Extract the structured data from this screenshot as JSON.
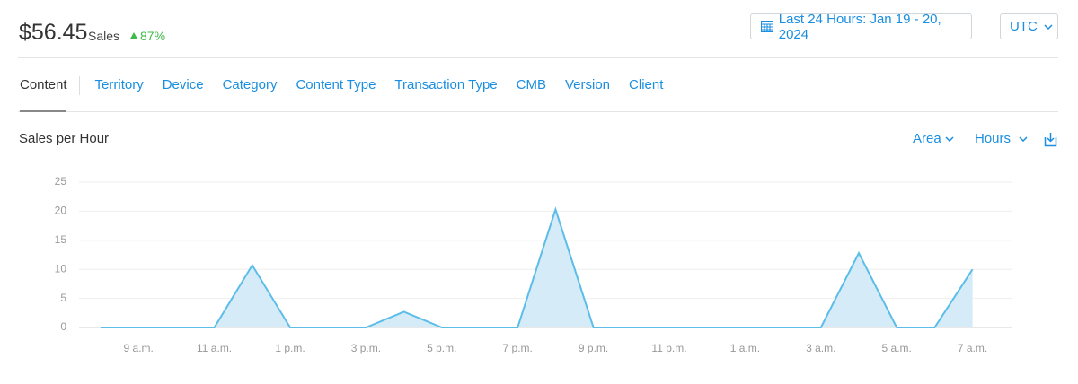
{
  "header": {
    "amount": "$56.45",
    "amount_label": "Sales",
    "change": "87%",
    "date_range": "Last 24 Hours: Jan 19 - 20, 2024",
    "timezone": "UTC"
  },
  "tabs": [
    "Content",
    "Territory",
    "Device",
    "Category",
    "Content Type",
    "Transaction Type",
    "CMB",
    "Version",
    "Client"
  ],
  "controls": {
    "chart_style": "Area",
    "granularity": "Hours"
  },
  "chart_data": {
    "type": "area",
    "title": "Sales per Hour",
    "categories": [
      null,
      "9 a.m.",
      null,
      "11 a.m.",
      null,
      "1 p.m.",
      null,
      "3 p.m.",
      null,
      "5 p.m.",
      null,
      "7 p.m.",
      null,
      "9 p.m.",
      null,
      "11 p.m.",
      null,
      "1 a.m.",
      null,
      "3 a.m.",
      null,
      "5 a.m.",
      null,
      "7 a.m."
    ],
    "values": [
      0,
      0,
      0,
      0,
      10.7,
      0,
      0,
      0,
      2.7,
      0,
      0,
      0,
      20.3,
      0,
      0,
      0,
      0,
      0,
      0,
      0,
      12.8,
      0,
      0,
      10
    ],
    "color": "#5bbde8",
    "fill": "#d5ebf8",
    "ylim": [
      0,
      25
    ],
    "yticks": [
      0,
      5,
      10,
      15,
      20,
      25
    ],
    "grid": true
  }
}
